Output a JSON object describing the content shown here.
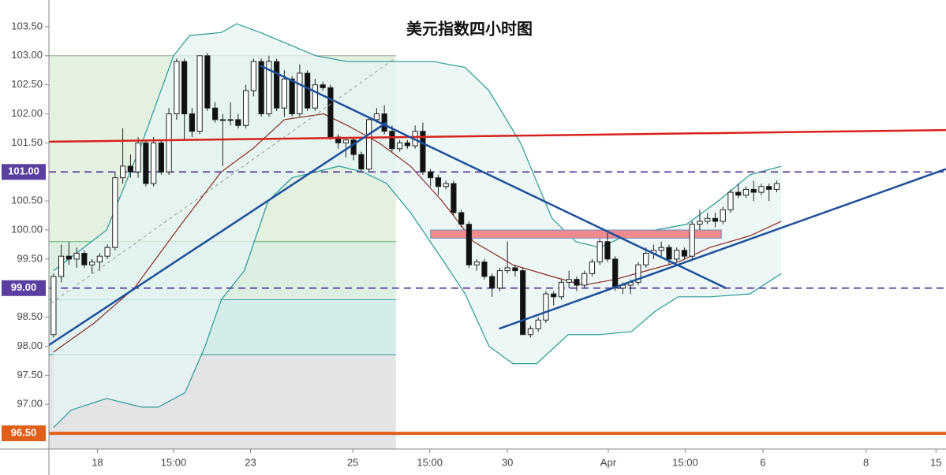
{
  "chart_data": {
    "type": "candlestick",
    "title": "美元指数四小时图",
    "xlim": [
      -0.6,
      116
    ],
    "ylim": [
      96.23,
      103.96
    ],
    "xticks": [
      {
        "value": 5.7,
        "label": "18"
      },
      {
        "value": 15.6,
        "label": "15:00"
      },
      {
        "value": 25.6,
        "label": "23"
      },
      {
        "value": 38.9,
        "label": "25"
      },
      {
        "value": 48.9,
        "label": "15:00"
      },
      {
        "value": 59.0,
        "label": "30"
      },
      {
        "value": 72.1,
        "label": "Apr"
      },
      {
        "value": 82.1,
        "label": "15:00"
      },
      {
        "value": 92.2,
        "label": "6"
      },
      {
        "value": 105.6,
        "label": "8"
      },
      {
        "value": 114.7,
        "label": "15"
      }
    ],
    "yticks": [
      {
        "value": 97,
        "label": "97.00"
      },
      {
        "value": 97.5,
        "label": "97.50"
      },
      {
        "value": 98,
        "label": "98.00"
      },
      {
        "value": 98.5,
        "label": "98.50"
      },
      {
        "value": 99.5,
        "label": "99.50"
      },
      {
        "value": 100,
        "label": "100.00"
      },
      {
        "value": 100.5,
        "label": "100.50"
      },
      {
        "value": 101.5,
        "label": "101.50"
      },
      {
        "value": 102,
        "label": "102.00"
      },
      {
        "value": 102.5,
        "label": "102.50"
      },
      {
        "value": 103,
        "label": "103.00"
      },
      {
        "value": 103.5,
        "label": "103.50"
      }
    ],
    "price_lines": [
      {
        "value": 101,
        "label": "101.00",
        "color": "#5b3fa0",
        "dashed": true
      },
      {
        "value": 99,
        "label": "99.00",
        "color": "#5b3fa0",
        "dashed": true
      },
      {
        "value": 96.5,
        "label": "96.50",
        "color": "#e0601a",
        "dashed": false
      }
    ],
    "up_color": "#ffffff",
    "down_color": "#111111",
    "ohlc": [
      [
        98.2,
        99.25,
        98.15,
        99.2
      ],
      [
        99.2,
        99.75,
        99.1,
        99.55
      ],
      [
        99.55,
        99.8,
        99.4,
        99.5
      ],
      [
        99.5,
        99.7,
        99.35,
        99.6
      ],
      [
        99.6,
        99.65,
        99.35,
        99.4
      ],
      [
        99.4,
        99.5,
        99.25,
        99.45
      ],
      [
        99.45,
        99.6,
        99.3,
        99.55
      ],
      [
        99.55,
        99.75,
        99.5,
        99.7
      ],
      [
        99.7,
        101.0,
        99.65,
        100.9
      ],
      [
        100.9,
        101.75,
        100.8,
        101.1
      ],
      [
        101.1,
        101.3,
        100.9,
        101.0
      ],
      [
        101.0,
        101.6,
        100.9,
        101.5
      ],
      [
        101.5,
        101.55,
        100.75,
        100.8
      ],
      [
        100.8,
        101.6,
        100.75,
        101.5
      ],
      [
        101.5,
        101.55,
        100.95,
        101.0
      ],
      [
        101.0,
        102.1,
        100.95,
        102.0
      ],
      [
        102.0,
        102.95,
        101.9,
        102.9
      ],
      [
        102.9,
        102.95,
        101.55,
        102.0
      ],
      [
        102.0,
        102.1,
        101.6,
        101.7
      ],
      [
        101.7,
        103.0,
        101.65,
        103.0
      ],
      [
        103.0,
        103.05,
        102.05,
        102.1
      ],
      [
        102.1,
        102.2,
        101.85,
        101.9
      ],
      [
        101.9,
        102.0,
        101.1,
        101.9
      ],
      [
        101.9,
        102.2,
        101.8,
        101.9
      ],
      [
        101.9,
        102.0,
        101.75,
        101.8
      ],
      [
        101.8,
        102.5,
        101.75,
        102.4
      ],
      [
        102.4,
        102.95,
        102.3,
        102.9
      ],
      [
        102.9,
        102.95,
        101.95,
        102.0
      ],
      [
        102.0,
        103.0,
        101.95,
        102.9
      ],
      [
        102.9,
        102.95,
        102.05,
        102.1
      ],
      [
        102.1,
        102.75,
        101.95,
        102.6
      ],
      [
        102.6,
        102.65,
        101.95,
        102.0
      ],
      [
        102.0,
        102.85,
        101.95,
        102.7
      ],
      [
        102.7,
        102.75,
        102.05,
        102.1
      ],
      [
        102.1,
        102.6,
        102.05,
        102.5
      ],
      [
        102.5,
        102.55,
        102.4,
        102.45
      ],
      [
        102.45,
        102.5,
        101.55,
        101.6
      ],
      [
        101.6,
        101.65,
        101.4,
        101.5
      ],
      [
        101.5,
        101.6,
        101.25,
        101.55
      ],
      [
        101.55,
        101.6,
        101.2,
        101.3
      ],
      [
        101.3,
        101.35,
        101.0,
        101.05
      ],
      [
        101.05,
        101.95,
        101.0,
        101.9
      ],
      [
        101.9,
        102.1,
        101.85,
        102.0
      ],
      [
        102.0,
        102.15,
        101.65,
        101.7
      ],
      [
        101.7,
        101.8,
        101.35,
        101.4
      ],
      [
        101.4,
        101.55,
        101.35,
        101.5
      ],
      [
        101.5,
        101.55,
        101.4,
        101.45
      ],
      [
        101.45,
        101.8,
        101.4,
        101.7
      ],
      [
        101.7,
        101.85,
        100.95,
        101.0
      ],
      [
        101.0,
        101.05,
        100.75,
        100.9
      ],
      [
        100.9,
        100.95,
        100.6,
        100.75
      ],
      [
        100.75,
        100.85,
        100.7,
        100.8
      ],
      [
        100.8,
        100.85,
        100.25,
        100.3
      ],
      [
        100.3,
        100.35,
        100.05,
        100.1
      ],
      [
        100.1,
        100.15,
        99.35,
        99.4
      ],
      [
        99.4,
        99.5,
        99.3,
        99.45
      ],
      [
        99.45,
        99.5,
        99.15,
        99.2
      ],
      [
        99.2,
        99.25,
        98.85,
        99.0
      ],
      [
        99.0,
        99.35,
        98.95,
        99.3
      ],
      [
        99.3,
        99.8,
        99.25,
        99.35
      ],
      [
        99.35,
        99.4,
        99.2,
        99.3
      ],
      [
        99.3,
        99.35,
        98.2,
        98.2
      ],
      [
        98.2,
        98.35,
        98.15,
        98.3
      ],
      [
        98.3,
        98.5,
        98.25,
        98.45
      ],
      [
        98.45,
        98.95,
        98.4,
        98.9
      ],
      [
        98.9,
        98.95,
        98.7,
        98.85
      ],
      [
        98.85,
        99.15,
        98.8,
        99.1
      ],
      [
        99.1,
        99.3,
        99.0,
        99.15
      ],
      [
        99.15,
        99.2,
        98.95,
        99.05
      ],
      [
        99.05,
        99.3,
        99.0,
        99.25
      ],
      [
        99.25,
        99.5,
        99.2,
        99.45
      ],
      [
        99.45,
        99.85,
        99.4,
        99.8
      ],
      [
        99.8,
        99.95,
        99.45,
        99.5
      ],
      [
        99.5,
        99.55,
        98.95,
        99.0
      ],
      [
        99.0,
        99.1,
        98.9,
        99.05
      ],
      [
        99.05,
        99.15,
        98.9,
        99.1
      ],
      [
        99.1,
        99.45,
        99.05,
        99.4
      ],
      [
        99.4,
        99.7,
        99.35,
        99.6
      ],
      [
        99.6,
        99.75,
        99.5,
        99.65
      ],
      [
        99.65,
        99.8,
        99.55,
        99.7
      ],
      [
        99.7,
        99.75,
        99.4,
        99.5
      ],
      [
        99.5,
        99.7,
        99.45,
        99.65
      ],
      [
        99.65,
        99.7,
        99.5,
        99.55
      ],
      [
        99.55,
        100.15,
        99.5,
        100.1
      ],
      [
        100.1,
        100.35,
        100.0,
        100.15
      ],
      [
        100.15,
        100.3,
        100.1,
        100.2
      ],
      [
        100.2,
        100.3,
        100.05,
        100.15
      ],
      [
        100.15,
        100.4,
        100.1,
        100.35
      ],
      [
        100.35,
        100.7,
        100.3,
        100.65
      ],
      [
        100.65,
        100.8,
        100.55,
        100.6
      ],
      [
        100.6,
        100.75,
        100.55,
        100.7
      ],
      [
        100.7,
        100.85,
        100.5,
        100.65
      ],
      [
        100.65,
        100.8,
        100.6,
        100.75
      ],
      [
        100.75,
        100.8,
        100.5,
        100.7
      ],
      [
        100.7,
        100.85,
        100.65,
        100.8
      ]
    ],
    "zones": [
      {
        "x": [
          -0.6,
          44.5
        ],
        "y": [
          99.8,
          103.0
        ],
        "color": "#e4f1e1",
        "edge": "#8fa88f"
      },
      {
        "x": [
          -0.6,
          44.5
        ],
        "y": [
          98.8,
          99.8
        ],
        "color": "#dcefe2",
        "edge": "#66b36f"
      },
      {
        "x": [
          -0.6,
          44.5
        ],
        "y": [
          97.85,
          98.8
        ],
        "color": "#d3ecea",
        "edge": "#3aa39a"
      },
      {
        "x": [
          -0.6,
          44.5
        ],
        "y": [
          96.23,
          97.85
        ],
        "color": "#e3e4e6",
        "edge": "#3aa39a"
      }
    ],
    "band_color": "#2a9a96",
    "band_fill": "#e6f4f3",
    "upper_band": {
      "x": [
        0.0,
        6.9,
        11.5,
        15.6,
        17.7,
        21.8,
        23.8,
        26.9,
        34.1,
        38.2,
        42.3,
        45.3,
        49.4,
        53.5,
        56.6,
        60.7,
        64.8,
        67.9,
        71.0,
        75.1,
        78.2,
        82.3,
        86.4,
        90.5,
        94.6
      ],
      "values": [
        99.3,
        100.0,
        101.5,
        103.0,
        103.35,
        103.4,
        103.55,
        103.4,
        103.0,
        102.9,
        102.9,
        102.9,
        102.9,
        102.8,
        102.4,
        101.5,
        100.2,
        99.8,
        99.7,
        99.95,
        100.0,
        100.1,
        100.5,
        100.95,
        101.1
      ]
    },
    "lower_band": {
      "x": [
        0.0,
        2.3,
        6.9,
        11.5,
        13.6,
        17.1,
        19.7,
        21.8,
        24.8,
        27.9,
        31.0,
        34.1,
        37.1,
        40.2,
        43.3,
        46.4,
        50.5,
        53.5,
        56.6,
        59.7,
        62.8,
        66.9,
        71.0,
        75.1,
        78.2,
        81.2,
        85.3,
        90.5,
        94.6
      ],
      "values": [
        96.6,
        96.9,
        97.1,
        96.95,
        96.95,
        97.2,
        98.0,
        98.8,
        99.3,
        100.5,
        100.9,
        101.0,
        101.1,
        101.0,
        100.8,
        100.3,
        99.5,
        98.9,
        98.0,
        97.7,
        97.7,
        98.2,
        98.2,
        98.25,
        98.6,
        98.85,
        98.85,
        98.9,
        99.25
      ]
    },
    "middle_band": {
      "color": "#8b2a24",
      "x": [
        0.0,
        5.3,
        10.5,
        16.6,
        21.8,
        25.9,
        30.0,
        35.1,
        38.2,
        42.3,
        46.4,
        50.5,
        54.6,
        59.7,
        64.8,
        68.9,
        73.0,
        77.1,
        81.2,
        85.3,
        90.5,
        94.6
      ],
      "values": [
        97.9,
        98.4,
        99.0,
        100.1,
        101.0,
        101.4,
        101.9,
        102.0,
        101.8,
        101.5,
        101.1,
        100.5,
        99.8,
        99.4,
        99.2,
        99.05,
        99.15,
        99.3,
        99.45,
        99.7,
        99.9,
        100.15
      ]
    },
    "lines": [
      {
        "color": "#d9221c",
        "width": 2.5,
        "dashed": false,
        "x": [
          -0.6,
          116
        ],
        "y": [
          101.52,
          101.72
        ]
      },
      {
        "color": "#1e4f9a",
        "width": 2.5,
        "dashed": false,
        "x": [
          -0.6,
          43.3
        ],
        "y": [
          98.02,
          101.85
        ]
      },
      {
        "color": "#1e4f9a",
        "width": 2.5,
        "dashed": false,
        "x": [
          26.9,
          87.4
        ],
        "y": [
          102.83,
          99.0
        ]
      },
      {
        "color": "#1e4f9a",
        "width": 2.5,
        "dashed": false,
        "x": [
          57.9,
          116
        ],
        "y": [
          98.3,
          101.05
        ]
      },
      {
        "color": "#999999",
        "width": 1,
        "dashed": true,
        "x": [
          -0.3,
          44.3
        ],
        "y": [
          98.74,
          102.95
        ]
      }
    ],
    "rect": {
      "x": [
        49.0,
        86.8
      ],
      "y": [
        99.86,
        100.0
      ],
      "color": "#f08a8e",
      "edge": "#6b8fc4"
    }
  }
}
